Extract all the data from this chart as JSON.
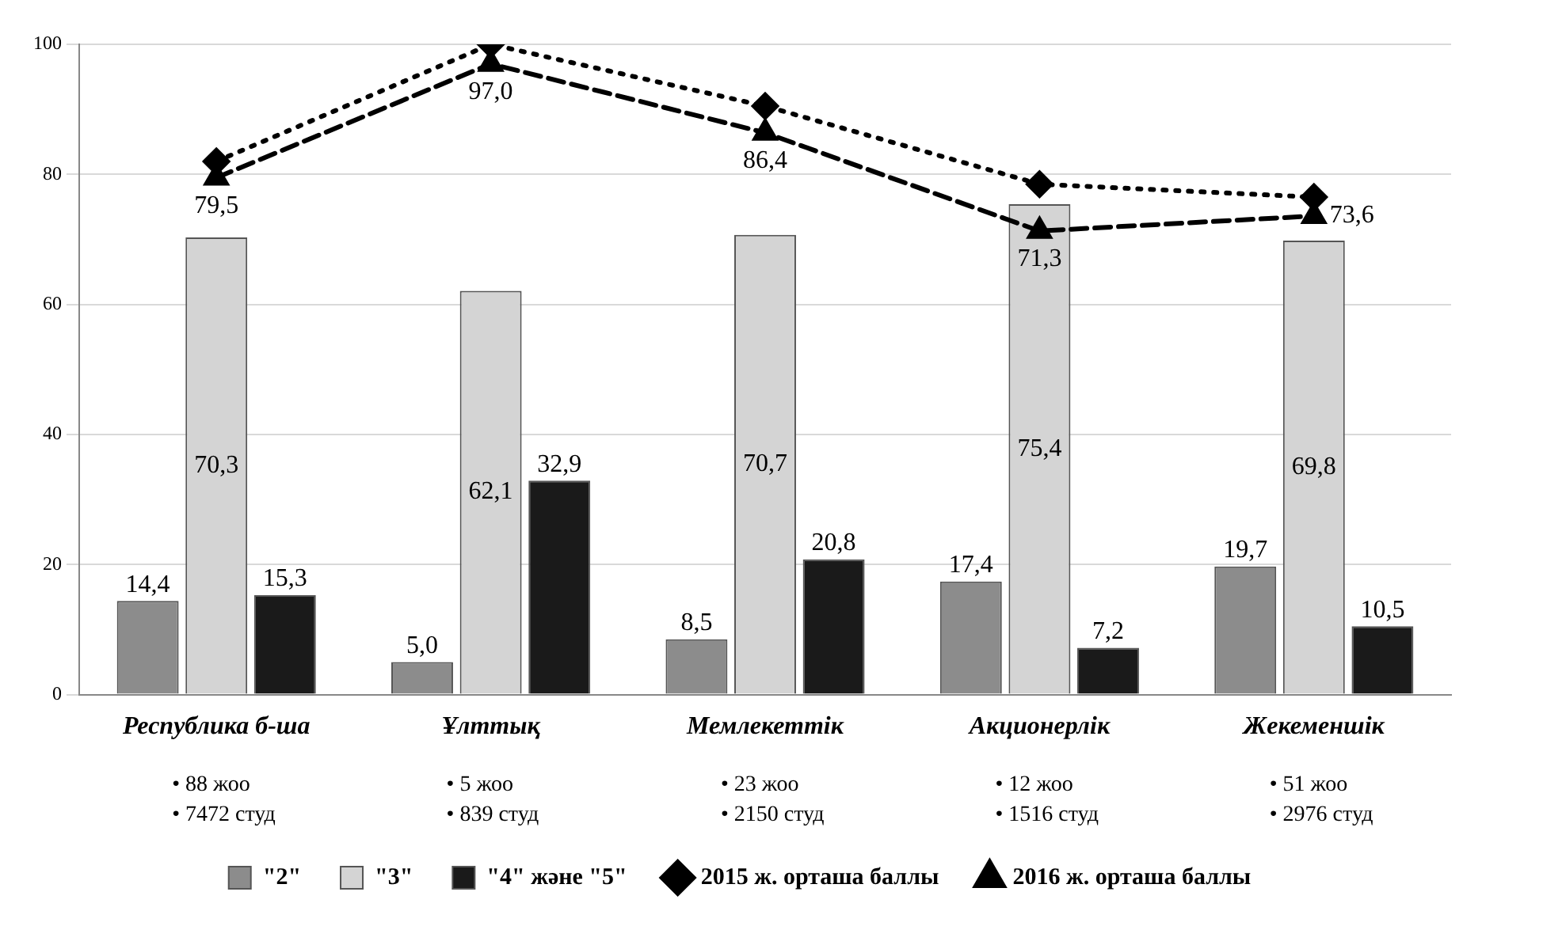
{
  "chart_data": {
    "type": "bar",
    "categories": [
      "Республика б-ша",
      "Ұлттық",
      "Мемлекеттік",
      "Акционерлік",
      "Жекеменшік"
    ],
    "series": [
      {
        "name": "\"2\"",
        "color": "#8c8c8c",
        "values": [
          14.4,
          5.0,
          8.5,
          17.4,
          19.7
        ],
        "value_labels": [
          "14,4",
          "5,0",
          "8,5",
          "17,4",
          "19,7"
        ]
      },
      {
        "name": "\"3\"",
        "color": "#d4d4d4",
        "values": [
          70.3,
          62.1,
          70.7,
          75.4,
          69.8
        ],
        "value_labels": [
          "70,3",
          "62,1",
          "70,7",
          "75,4",
          "69,8"
        ]
      },
      {
        "name": "\"4\" және \"5\"",
        "color": "#1a1a1a",
        "values": [
          15.3,
          32.9,
          20.8,
          7.2,
          10.5
        ],
        "value_labels": [
          "15,3",
          "32,9",
          "20,8",
          "7,2",
          "10,5"
        ]
      },
      {
        "name": "2015 ж. орташа баллы",
        "type": "line",
        "color": "#000000",
        "marker": "diamond",
        "line_style": "dotted",
        "values": [
          82,
          100,
          90.5,
          78.5,
          76.5
        ]
      },
      {
        "name": "2016 ж. орташа баллы",
        "type": "line",
        "color": "#000000",
        "marker": "triangle",
        "line_style": "dashed",
        "values": [
          79.5,
          97.0,
          86.4,
          71.3,
          73.6
        ],
        "value_labels": [
          "79,5",
          "97,0",
          "86,4",
          "71,3",
          "73,6"
        ]
      }
    ],
    "annotations": [
      "• 88 жоо\n• 7472 студ",
      "• 5 жоо\n• 839 студ",
      "• 23 жоо\n• 2150 студ",
      "• 12 жоо\n• 1516 студ",
      "• 51 жоо\n• 2976 студ"
    ],
    "ylim": [
      0,
      100
    ],
    "yticks": [
      0,
      20,
      40,
      60,
      80,
      100
    ],
    "grid": "y",
    "legend": "bottom"
  }
}
